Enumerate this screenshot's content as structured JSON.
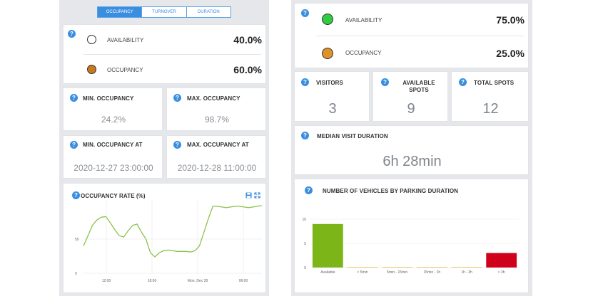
{
  "tabs": [
    {
      "label": "OCCUPANCY",
      "active": true
    },
    {
      "label": "TURNOVER",
      "active": false
    },
    {
      "label": "DURATION",
      "active": false
    }
  ],
  "left": {
    "availability_label": "AVAILABILITY",
    "availability_value": "40.0%",
    "occupancy_label": "OCCUPANCY",
    "occupancy_value": "60.0%",
    "min_occupancy_label": "MIN. OCCUPANCY",
    "min_occupancy_value": "24.2%",
    "max_occupancy_label": "MAX. OCCUPANCY",
    "max_occupancy_value": "98.7%",
    "min_occupancy_at_label": "MIN. OCCUPANCY AT",
    "min_occupancy_at_value": "2020-12-27 23:00:00",
    "max_occupancy_at_label": "MAX. OCCUPANCY AT",
    "max_occupancy_at_value": "2020-12-28 11:00:00"
  },
  "right": {
    "availability_label": "AVAILABILITY",
    "availability_value": "75.0%",
    "occupancy_label": "OCCUPANCY",
    "occupancy_value": "25.0%",
    "visitors_label": "VISITORS",
    "visitors_value": "3",
    "available_spots_label": "AVAILABLE SPOTS",
    "available_spots_value": "9",
    "total_spots_label": "TOTAL SPOTS",
    "total_spots_value": "12",
    "median_label": "MEDIAN VISIT DURATION",
    "median_value": "6h 28min"
  },
  "colors": {
    "availability_dot": "#2ecc40",
    "occupancy_dot": "#e0922a",
    "left_occupancy_dot": "#c97a1e",
    "line": "#8bc34a",
    "bar_green": "#7cb518",
    "bar_red": "#d0021b",
    "accent": "#3a8ee0"
  },
  "icons": {
    "help": "?",
    "save": "save-icon",
    "expand": "expand-icon"
  },
  "chart_data": [
    {
      "type": "line",
      "title": "OCCUPANCY RATE (%)",
      "x_ticks": [
        "12:00",
        "18:00",
        "Mon, Dec 28",
        "06:00"
      ],
      "y_ticks": [
        "0",
        "50"
      ],
      "ylim": [
        0,
        100
      ],
      "x": [
        0,
        1,
        2,
        3,
        4,
        5,
        6,
        7,
        8,
        9,
        10,
        11,
        12,
        13,
        14,
        15,
        16,
        17,
        18,
        19,
        20,
        21,
        22,
        23,
        24,
        25,
        26,
        27,
        28,
        29,
        30,
        31,
        32,
        33,
        34,
        35,
        36,
        37,
        38,
        39,
        40
      ],
      "values": [
        40,
        55,
        70,
        78,
        82,
        83,
        74,
        64,
        55,
        53,
        62,
        70,
        72,
        60,
        50,
        30,
        24,
        30,
        33,
        34,
        33,
        32,
        32,
        32,
        31,
        33,
        40,
        60,
        80,
        98,
        98,
        97,
        96,
        97,
        98,
        98,
        97,
        96,
        97,
        98,
        99
      ],
      "grid": true
    },
    {
      "type": "bar",
      "title": "NUMBER OF VEHICLES BY PARKING DURATION",
      "categories": [
        "Available",
        "< 5min",
        "5min - 15min",
        "15min - 1h",
        "1h - 3h",
        "> 3h"
      ],
      "values": [
        9,
        0,
        0,
        0,
        0,
        3
      ],
      "y_ticks": [
        "0",
        "5",
        "10"
      ],
      "ylim": [
        0,
        10
      ],
      "grid": true
    }
  ]
}
